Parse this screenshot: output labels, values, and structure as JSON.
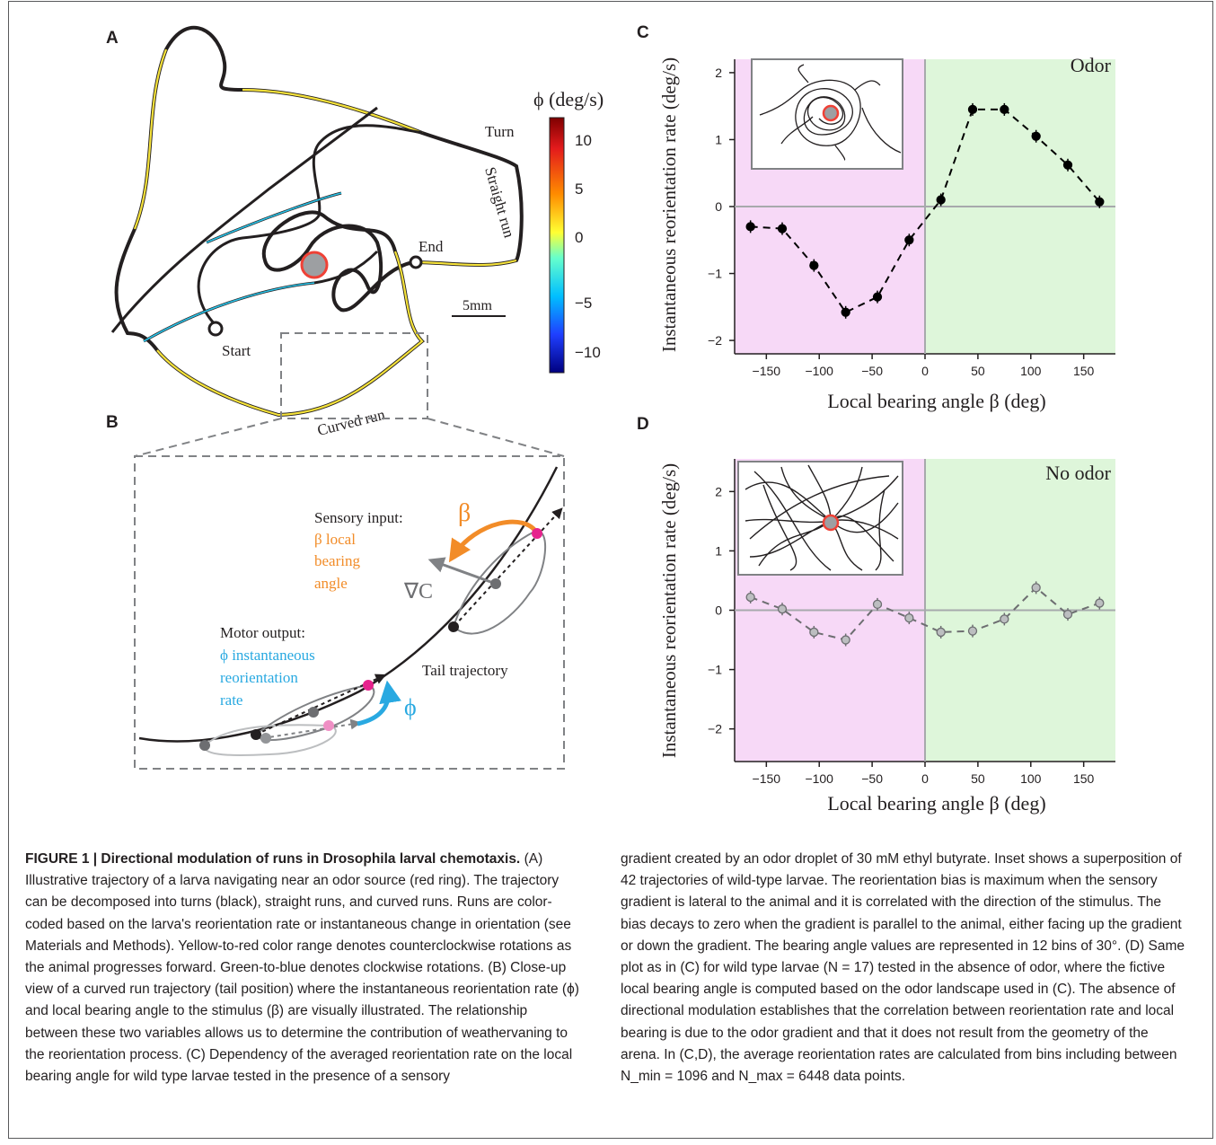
{
  "figure": {
    "panel_labels": {
      "a": "A",
      "b": "B",
      "c": "C",
      "d": "D"
    },
    "panel_a": {
      "colorbar_title": "ϕ (deg/s)",
      "colorbar_ticks": [
        "10",
        "5",
        "0",
        "−5",
        "−10"
      ],
      "labels": {
        "turn": "Turn",
        "straight_run": "Straight run",
        "end": "End",
        "start": "Start",
        "curved_run": "Curved run",
        "scale_bar": "5mm"
      }
    },
    "panel_b": {
      "sensory_title": "Sensory input:",
      "sensory_line1": "β local",
      "sensory_line2": "bearing",
      "sensory_line3": "angle",
      "beta_symbol": "β",
      "gradient_symbol": "∇C",
      "motor_title": "Motor output:",
      "motor_line1": "ϕ instantaneous",
      "motor_line2": "reorientation",
      "motor_line3": "rate",
      "phi_symbol": "ϕ",
      "tail_label": "Tail trajectory"
    },
    "colors": {
      "odor_bg_left": "#f7d9f7",
      "odor_bg_right": "#def6da",
      "orange": "#f28c28",
      "cyan": "#29a9e1",
      "magenta": "#e6238d",
      "pink": "#ef8fc4"
    }
  },
  "chart_data": [
    {
      "type": "line",
      "panel": "C",
      "condition_label": "Odor",
      "xlabel": "Local bearing angle β (deg)",
      "ylabel": "Instantaneous reorientation rate (deg/s)",
      "xticks": [
        -150,
        -100,
        -50,
        0,
        50,
        100,
        150
      ],
      "xtick_labels": [
        "−150",
        "−100",
        "−50",
        "0",
        "50",
        "100",
        "150"
      ],
      "yticks": [
        -2,
        -1,
        0,
        1,
        2
      ],
      "ytick_labels": [
        "−2",
        "−1",
        "0",
        "1",
        "2"
      ],
      "xlim": [
        -180,
        180
      ],
      "ylim": [
        -2.2,
        2.2
      ],
      "x": [
        -165,
        -135,
        -105,
        -75,
        -45,
        -15,
        15,
        45,
        75,
        105,
        135,
        165
      ],
      "series": [
        {
          "values": [
            -0.3,
            -0.33,
            -0.88,
            -1.58,
            -1.35,
            -0.5,
            0.1,
            1.45,
            1.45,
            1.05,
            0.62,
            0.07
          ],
          "color": "#000000"
        }
      ]
    },
    {
      "type": "line",
      "panel": "D",
      "condition_label": "No odor",
      "xlabel": "Local bearing angle β (deg)",
      "ylabel": "Instantaneous reorientation rate (deg/s)",
      "xticks": [
        -150,
        -100,
        -50,
        0,
        50,
        100,
        150
      ],
      "xtick_labels": [
        "−150",
        "−100",
        "−50",
        "0",
        "50",
        "100",
        "150"
      ],
      "yticks": [
        -2,
        -1,
        0,
        1,
        2
      ],
      "ytick_labels": [
        "−2",
        "−1",
        "0",
        "1",
        "2"
      ],
      "xlim": [
        -180,
        180
      ],
      "ylim": [
        -2.55,
        2.55
      ],
      "x": [
        -165,
        -135,
        -105,
        -75,
        -45,
        -15,
        15,
        45,
        75,
        105,
        135,
        165
      ],
      "series": [
        {
          "values": [
            0.22,
            0.02,
            -0.37,
            -0.5,
            0.1,
            -0.13,
            -0.37,
            -0.35,
            -0.15,
            0.38,
            -0.07,
            0.12
          ],
          "color": "#6d6e71"
        }
      ]
    }
  ],
  "caption": {
    "title": "FIGURE 1 | Directional modulation of runs in Drosophila larval chemotaxis.",
    "left_text": "(A) Illustrative trajectory of a larva navigating near an odor source (red ring). The trajectory can be decomposed into turns (black), straight runs, and curved runs. Runs are color-coded based on the larva's reorientation rate or instantaneous change in orientation (see Materials and Methods). Yellow-to-red color range denotes counterclockwise rotations as the animal progresses forward. Green-to-blue denotes clockwise rotations. (B) Close-up view of a curved run trajectory (tail position) where the instantaneous reorientation rate (ϕ) and local bearing angle to the stimulus (β) are visually illustrated. The relationship between these two variables allows us to determine the contribution of weathervaning to the reorientation process. (C) Dependency of the averaged reorientation rate on the local bearing angle for wild type larvae tested in the presence of a sensory",
    "right_text": "gradient created by an odor droplet of 30 mM ethyl butyrate. Inset shows a superposition of 42 trajectories of wild-type larvae. The reorientation bias is maximum when the sensory gradient is lateral to the animal and it is correlated with the direction of the stimulus. The bias decays to zero when the gradient is parallel to the animal, either facing up the gradient or down the gradient. The bearing angle values are represented in 12 bins of 30°. (D) Same plot as in (C) for wild type larvae (N = 17) tested in the absence of odor, where the fictive local bearing angle is computed based on the odor landscape used in (C). The absence of directional modulation establishes that the correlation between reorientation rate and local bearing is due to the odor gradient and that it does not result from the geometry of the arena. In (C,D), the average reorientation rates are calculated from bins including between N_min = 1096 and N_max = 6448 data points."
  }
}
